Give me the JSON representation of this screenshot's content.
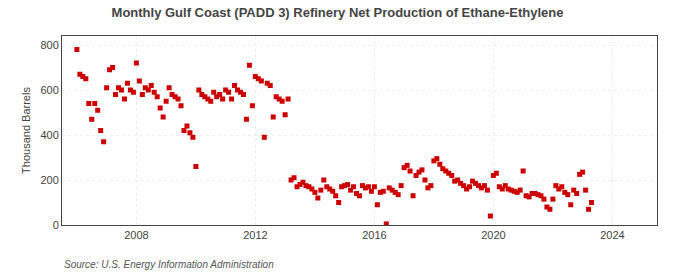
{
  "chart_data": {
    "type": "scatter",
    "title": "Monthly Gulf Coast (PADD 3) Refinery Net Production of Ethane-Ethylene",
    "ylabel": "Thousand Barrels",
    "source": "Source: U.S. Energy Information Administration",
    "color": "#cc0000",
    "marker": "square",
    "grid": true,
    "xlim": [
      2005.5,
      2025.5
    ],
    "ylim": [
      0,
      840
    ],
    "xticks": [
      2008,
      2012,
      2016,
      2020,
      2024
    ],
    "yticks": [
      0,
      200,
      400,
      600,
      800
    ],
    "x": [
      2006.0,
      2006.1,
      2006.2,
      2006.3,
      2006.4,
      2006.5,
      2006.6,
      2006.7,
      2006.8,
      2006.9,
      2007.0,
      2007.1,
      2007.2,
      2007.3,
      2007.4,
      2007.5,
      2007.6,
      2007.7,
      2007.8,
      2007.9,
      2008.0,
      2008.1,
      2008.2,
      2008.3,
      2008.4,
      2008.5,
      2008.6,
      2008.7,
      2008.8,
      2008.9,
      2009.0,
      2009.1,
      2009.2,
      2009.3,
      2009.4,
      2009.5,
      2009.6,
      2009.7,
      2009.8,
      2009.9,
      2010.0,
      2010.1,
      2010.2,
      2010.3,
      2010.4,
      2010.5,
      2010.6,
      2010.7,
      2010.8,
      2010.9,
      2011.0,
      2011.1,
      2011.2,
      2011.3,
      2011.4,
      2011.5,
      2011.6,
      2011.7,
      2011.8,
      2011.9,
      2012.0,
      2012.1,
      2012.2,
      2012.3,
      2012.4,
      2012.5,
      2012.6,
      2012.7,
      2012.8,
      2012.9,
      2013.0,
      2013.1,
      2013.2,
      2013.3,
      2013.4,
      2013.5,
      2013.6,
      2013.7,
      2013.8,
      2013.9,
      2014.0,
      2014.1,
      2014.2,
      2014.3,
      2014.4,
      2014.5,
      2014.6,
      2014.7,
      2014.8,
      2014.9,
      2015.0,
      2015.1,
      2015.2,
      2015.3,
      2015.4,
      2015.5,
      2015.6,
      2015.7,
      2015.8,
      2015.9,
      2016.0,
      2016.1,
      2016.2,
      2016.3,
      2016.4,
      2016.5,
      2016.6,
      2016.7,
      2016.8,
      2016.9,
      2017.0,
      2017.1,
      2017.2,
      2017.3,
      2017.4,
      2017.5,
      2017.6,
      2017.7,
      2017.8,
      2017.9,
      2018.0,
      2018.1,
      2018.2,
      2018.3,
      2018.4,
      2018.5,
      2018.6,
      2018.7,
      2018.8,
      2018.9,
      2019.0,
      2019.1,
      2019.2,
      2019.3,
      2019.4,
      2019.5,
      2019.6,
      2019.7,
      2019.8,
      2019.9,
      2020.0,
      2020.1,
      2020.2,
      2020.3,
      2020.4,
      2020.5,
      2020.6,
      2020.7,
      2020.8,
      2020.9,
      2021.0,
      2021.1,
      2021.2,
      2021.3,
      2021.4,
      2021.5,
      2021.6,
      2021.7,
      2021.8,
      2021.9,
      2022.0,
      2022.1,
      2022.2,
      2022.3,
      2022.4,
      2022.5,
      2022.6,
      2022.7,
      2022.8,
      2022.9,
      2023.0,
      2023.1,
      2023.2,
      2023.3
    ],
    "values": [
      780,
      670,
      660,
      650,
      540,
      470,
      540,
      510,
      420,
      370,
      610,
      690,
      700,
      580,
      610,
      600,
      560,
      630,
      600,
      590,
      720,
      640,
      580,
      610,
      600,
      620,
      590,
      570,
      520,
      480,
      550,
      610,
      580,
      570,
      560,
      530,
      420,
      440,
      410,
      390,
      260,
      600,
      580,
      570,
      560,
      550,
      590,
      570,
      580,
      560,
      600,
      590,
      560,
      620,
      600,
      590,
      580,
      470,
      710,
      530,
      660,
      650,
      640,
      390,
      630,
      620,
      480,
      570,
      560,
      550,
      490,
      560,
      200,
      210,
      170,
      180,
      190,
      175,
      170,
      160,
      145,
      120,
      155,
      200,
      170,
      160,
      150,
      130,
      100,
      170,
      175,
      180,
      155,
      170,
      140,
      130,
      175,
      165,
      170,
      150,
      170,
      90,
      145,
      150,
      5,
      165,
      155,
      145,
      135,
      175,
      255,
      265,
      240,
      130,
      220,
      235,
      245,
      200,
      165,
      175,
      285,
      295,
      270,
      250,
      240,
      230,
      220,
      195,
      200,
      185,
      175,
      160,
      170,
      195,
      185,
      175,
      165,
      175,
      155,
      40,
      220,
      230,
      170,
      160,
      175,
      160,
      155,
      150,
      145,
      155,
      240,
      130,
      125,
      140,
      140,
      135,
      130,
      115,
      80,
      70,
      115,
      175,
      160,
      170,
      145,
      135,
      90,
      155,
      140,
      225,
      235,
      155,
      70,
      100
    ]
  }
}
